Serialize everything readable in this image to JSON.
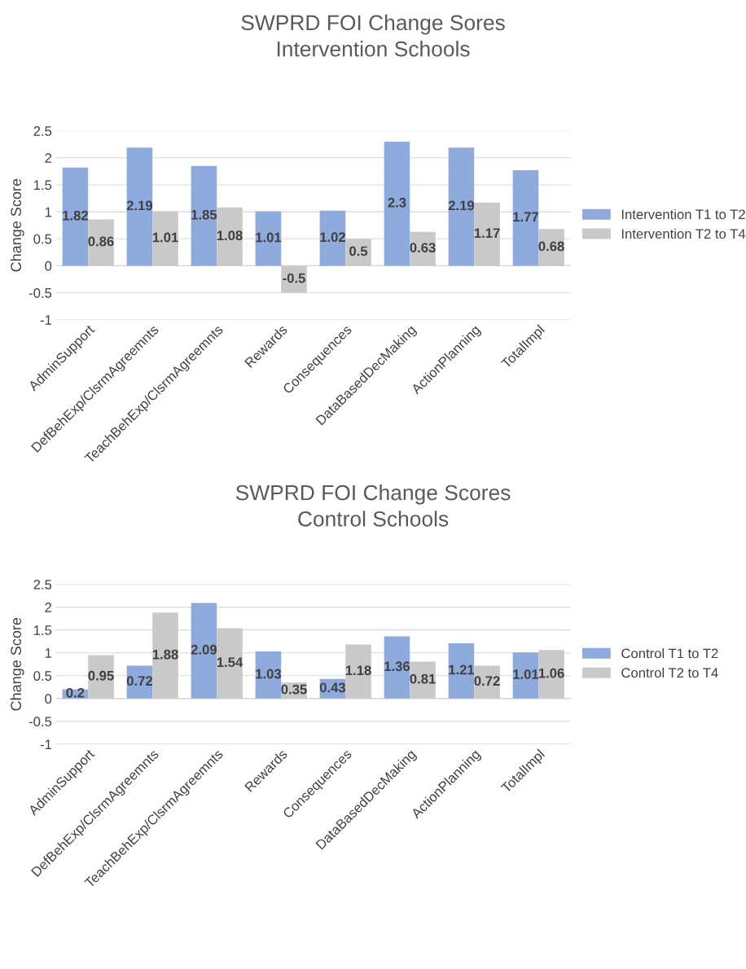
{
  "chart_data": [
    {
      "type": "bar",
      "title": "SWPRD FOI Change Sores\nIntervention Schools",
      "ylabel": "Change Score",
      "categories": [
        "AdminSupport",
        "DefBehExp/ClsrmAgreemnts",
        "TeachBehExp/ClsrmAgreemnts",
        "Rewards",
        "Consequences",
        "DataBasedDecMaking",
        "ActionPlanning",
        "TotalImpl"
      ],
      "series": [
        {
          "name": "Intervention T1 to T2",
          "color": "#8faadc",
          "values": [
            1.82,
            2.19,
            1.85,
            1.01,
            1.02,
            2.3,
            2.19,
            1.77
          ]
        },
        {
          "name": "Intervention T2 to T4",
          "color": "#c9c9c9",
          "values": [
            0.86,
            1.01,
            1.08,
            -0.5,
            0.5,
            0.63,
            1.17,
            0.68
          ]
        }
      ],
      "ylim": [
        -1,
        2.5
      ],
      "yticks": [
        -1,
        -0.5,
        0,
        0.5,
        1,
        1.5,
        2,
        2.5
      ],
      "grid": "y",
      "legend": "right",
      "data_labels": true
    },
    {
      "type": "bar",
      "title": "SWPRD FOI Change Scores\nControl Schools",
      "ylabel": "Change Score",
      "categories": [
        "AdminSupport",
        "DefBehExp/ClsrmAgreemnts",
        "TeachBehExp/ClsrmAgreemnts",
        "Rewards",
        "Consequences",
        "DataBasedDecMaking",
        "ActionPlanning",
        "TotalImpl"
      ],
      "series": [
        {
          "name": "Control T1 to T2",
          "color": "#8faadc",
          "values": [
            0.2,
            0.72,
            2.09,
            1.03,
            0.43,
            1.36,
            1.21,
            1.01
          ]
        },
        {
          "name": "Control T2 to T4",
          "color": "#c9c9c9",
          "values": [
            0.95,
            1.88,
            1.54,
            0.35,
            1.18,
            0.81,
            0.72,
            1.06
          ]
        }
      ],
      "ylim": [
        -1,
        2.5
      ],
      "yticks": [
        -1,
        -0.5,
        0,
        0.5,
        1,
        1.5,
        2,
        2.5
      ],
      "grid": "y",
      "legend": "right",
      "data_labels": true
    }
  ]
}
